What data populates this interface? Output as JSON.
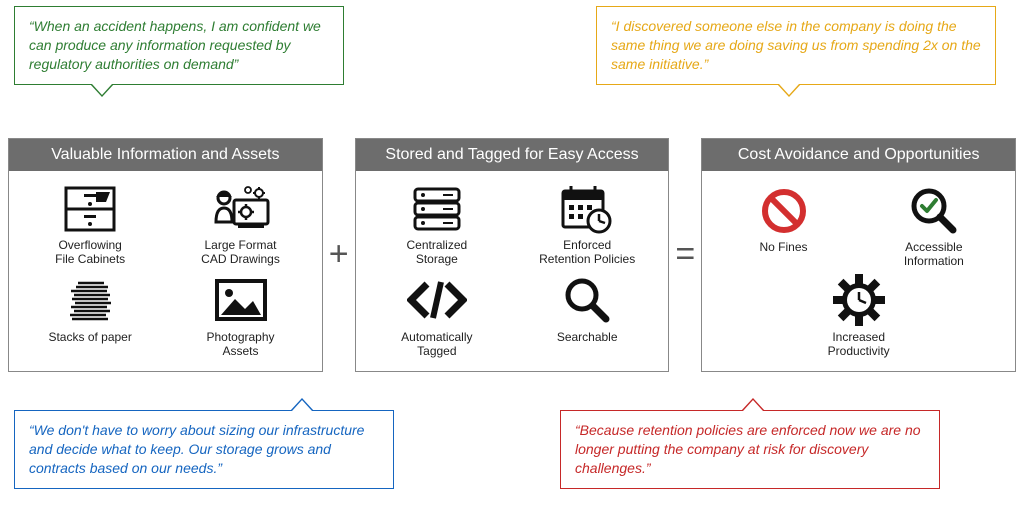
{
  "colors": {
    "green": "#2e7d32",
    "yellow": "#e6a817",
    "blue": "#1565c0",
    "red": "#c62828",
    "panel_header_bg": "#6d6d6d",
    "panel_border": "#888888",
    "icon": "#111111",
    "nofines": "#d32f2f",
    "check_green": "#2e7d32"
  },
  "quotes": {
    "green": "“When an accident happens, I am confident we can produce any information requested by regulatory authorities on demand”",
    "yellow": "“I discovered someone else in the company is doing the same thing we are doing saving us from spending 2x on the same initiative.”",
    "blue": "“We don't have to worry about sizing our infrastructure and decide what to keep. Our storage grows and contracts based on our needs.”",
    "red": "“Because retention policies are enforced now we are no longer putting the company at risk for discovery challenges.”"
  },
  "panels": {
    "assets": {
      "title": "Valuable Information and Assets",
      "items": [
        {
          "label": "Overflowing\nFile Cabinets"
        },
        {
          "label": "Large Format\nCAD Drawings"
        },
        {
          "label": "Stacks of paper"
        },
        {
          "label": "Photography\nAssets"
        }
      ]
    },
    "storage": {
      "title": "Stored and Tagged for Easy Access",
      "items": [
        {
          "label": "Centralized\nStorage"
        },
        {
          "label": "Enforced\nRetention Policies"
        },
        {
          "label": "Automatically\nTagged"
        },
        {
          "label": "Searchable"
        }
      ]
    },
    "outcomes": {
      "title": "Cost Avoidance and Opportunities",
      "items": [
        {
          "label": "No Fines"
        },
        {
          "label": "Accessible\nInformation"
        },
        {
          "label": "Increased\nProductivity"
        }
      ]
    }
  },
  "operators": {
    "plus": "+",
    "equals": "="
  }
}
